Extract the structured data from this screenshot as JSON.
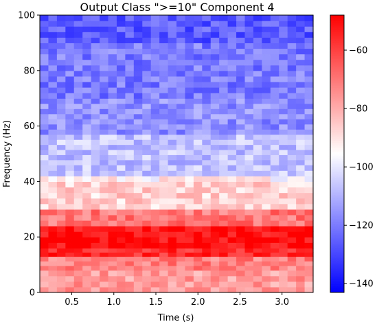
{
  "chart_data": {
    "type": "heatmap",
    "title": "Output Class \">=10\" Component 4",
    "xlabel": "Time (s)",
    "ylabel": "Frequency (Hz)",
    "xlim": [
      0.12,
      3.37
    ],
    "ylim": [
      0,
      100
    ],
    "x_ticks": [
      0.5,
      1.0,
      1.5,
      2.0,
      2.5,
      3.0
    ],
    "x_tick_labels": [
      "0.5",
      "1.0",
      "1.5",
      "2.0",
      "2.5",
      "3.0"
    ],
    "y_ticks": [
      0,
      20,
      40,
      60,
      80,
      100
    ],
    "y_tick_labels": [
      "0",
      "20",
      "40",
      "60",
      "80",
      "100"
    ],
    "colorbar": {
      "range": [
        -143,
        -48
      ],
      "ticks": [
        -140,
        -120,
        -100,
        -80,
        -60
      ],
      "tick_labels": [
        "−140",
        "−120",
        "−100",
        "−80",
        "−60"
      ],
      "colormap": "bwr",
      "colors": {
        "low": "#0000ff",
        "mid": "#ffffff",
        "high": "#ff0000"
      }
    },
    "grid": false,
    "n_time_bins": 32,
    "frequency_bands": [
      {
        "from_hz": 0,
        "to_hz": 8,
        "mean_value": -77
      },
      {
        "from_hz": 8,
        "to_hz": 13,
        "mean_value": -72
      },
      {
        "from_hz": 13,
        "to_hz": 16,
        "mean_value": -56
      },
      {
        "from_hz": 16,
        "to_hz": 24,
        "mean_value": -50
      },
      {
        "from_hz": 24,
        "to_hz": 30,
        "mean_value": -70
      },
      {
        "from_hz": 30,
        "to_hz": 40,
        "mean_value": -87
      },
      {
        "from_hz": 40,
        "to_hz": 42,
        "mean_value": -93
      },
      {
        "from_hz": 42,
        "to_hz": 46,
        "mean_value": -106
      },
      {
        "from_hz": 46,
        "to_hz": 57,
        "mean_value": -107
      },
      {
        "from_hz": 57,
        "to_hz": 70,
        "mean_value": -116
      },
      {
        "from_hz": 70,
        "to_hz": 90,
        "mean_value": -120
      },
      {
        "from_hz": 90,
        "to_hz": 100,
        "mean_value": -126
      }
    ]
  }
}
